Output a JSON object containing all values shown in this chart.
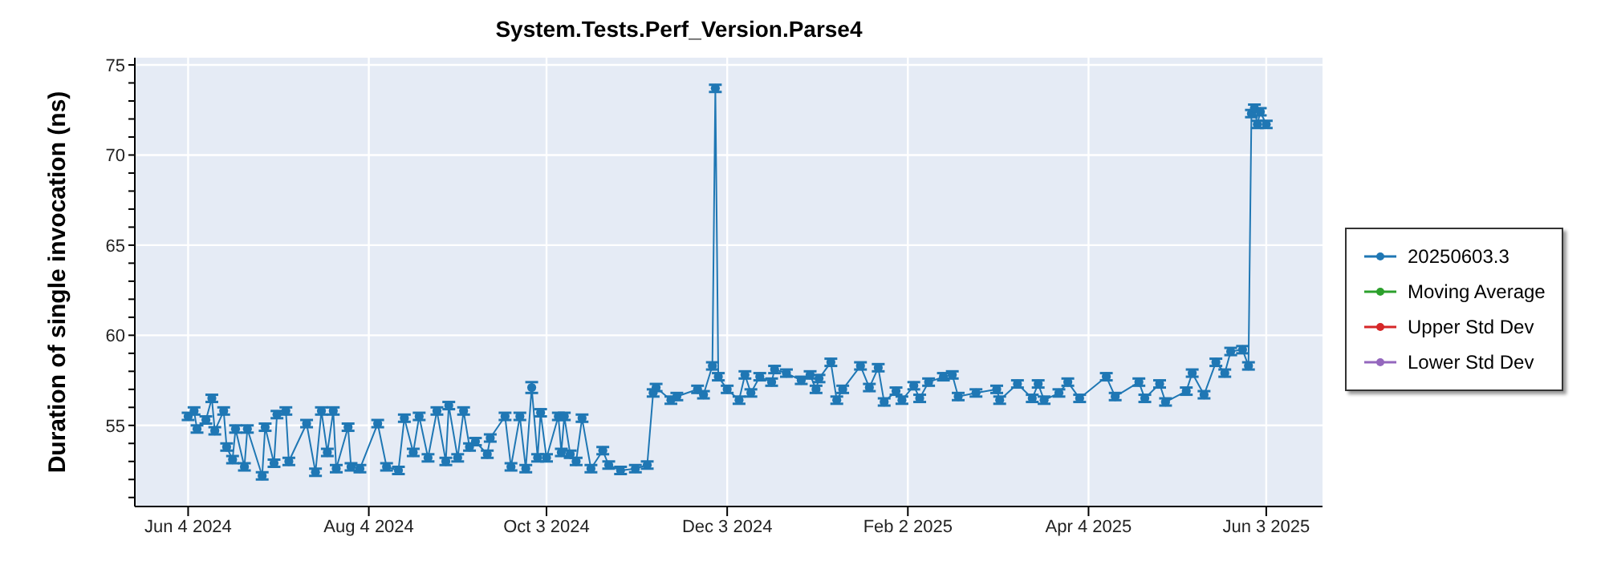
{
  "chart_data": {
    "type": "line",
    "title": "System.Tests.Perf_Version.Parse4",
    "ylabel": "Duration of single invocation (ns)",
    "x": [
      "2024-06-04",
      "2024-06-06",
      "2024-06-07",
      "2024-06-10",
      "2024-06-12",
      "2024-06-13",
      "2024-06-16",
      "2024-06-17",
      "2024-06-19",
      "2024-06-20",
      "2024-06-23",
      "2024-06-24",
      "2024-06-29",
      "2024-06-30",
      "2024-07-03",
      "2024-07-04",
      "2024-07-07",
      "2024-07-08",
      "2024-07-14",
      "2024-07-17",
      "2024-07-19",
      "2024-07-21",
      "2024-07-23",
      "2024-07-24",
      "2024-07-28",
      "2024-07-29",
      "2024-08-01",
      "2024-08-07",
      "2024-08-10",
      "2024-08-14",
      "2024-08-16",
      "2024-08-19",
      "2024-08-21",
      "2024-08-24",
      "2024-08-27",
      "2024-08-30",
      "2024-08-31",
      "2024-09-03",
      "2024-09-05",
      "2024-09-07",
      "2024-09-09",
      "2024-09-13",
      "2024-09-14",
      "2024-09-19",
      "2024-09-21",
      "2024-09-24",
      "2024-09-26",
      "2024-09-28",
      "2024-09-30",
      "2024-10-01",
      "2024-10-03",
      "2024-10-07",
      "2024-10-08",
      "2024-10-09",
      "2024-10-11",
      "2024-10-13",
      "2024-10-15",
      "2024-10-18",
      "2024-10-22",
      "2024-10-24",
      "2024-10-28",
      "2024-11-02",
      "2024-11-06",
      "2024-11-08",
      "2024-11-09",
      "2024-11-14",
      "2024-11-16",
      "2024-11-23",
      "2024-11-25",
      "2024-11-28",
      "2024-11-29",
      "2024-11-30",
      "2024-12-03",
      "2024-12-07",
      "2024-12-09",
      "2024-12-11",
      "2024-12-14",
      "2024-12-18",
      "2024-12-19",
      "2024-12-23",
      "2024-12-28",
      "2024-12-31",
      "2025-01-02",
      "2025-01-03",
      "2025-01-07",
      "2025-01-09",
      "2025-01-11",
      "2025-01-17",
      "2025-01-20",
      "2025-01-23",
      "2025-01-25",
      "2025-01-29",
      "2025-01-31",
      "2025-02-04",
      "2025-02-06",
      "2025-02-09",
      "2025-02-14",
      "2025-02-17",
      "2025-02-19",
      "2025-02-25",
      "2025-03-04",
      "2025-03-05",
      "2025-03-11",
      "2025-03-16",
      "2025-03-18",
      "2025-03-20",
      "2025-03-25",
      "2025-03-28",
      "2025-04-01",
      "2025-04-10",
      "2025-04-13",
      "2025-04-21",
      "2025-04-23",
      "2025-04-28",
      "2025-04-30",
      "2025-05-07",
      "2025-05-09",
      "2025-05-13",
      "2025-05-17",
      "2025-05-20",
      "2025-05-22",
      "2025-05-26",
      "2025-05-28",
      "2025-05-29",
      "2025-05-30",
      "2025-05-31",
      "2025-06-01",
      "2025-06-03"
    ],
    "series": [
      {
        "name": "20250603.3",
        "color": "#1f77b4",
        "values": [
          55.5,
          55.8,
          54.8,
          55.3,
          56.5,
          54.7,
          55.8,
          53.8,
          53.1,
          54.8,
          52.7,
          54.8,
          52.2,
          54.9,
          52.9,
          55.6,
          55.8,
          53.0,
          55.1,
          52.4,
          55.8,
          53.5,
          55.8,
          52.6,
          54.9,
          52.7,
          52.6,
          55.1,
          52.7,
          52.5,
          55.4,
          53.5,
          55.5,
          53.2,
          55.8,
          53.0,
          56.1,
          53.2,
          55.8,
          53.8,
          54.1,
          53.4,
          54.3,
          55.5,
          52.7,
          55.5,
          52.6,
          57.1,
          53.2,
          55.7,
          53.2,
          55.5,
          53.5,
          55.5,
          53.4,
          53.0,
          55.4,
          52.6,
          53.6,
          52.8,
          52.5,
          52.6,
          52.8,
          56.8,
          57.1,
          56.4,
          56.6,
          57.0,
          56.7,
          58.3,
          73.7,
          57.7,
          57.0,
          56.4,
          57.8,
          56.8,
          57.7,
          57.4,
          58.1,
          57.9,
          57.5,
          57.8,
          57.0,
          57.6,
          58.5,
          56.4,
          57.0,
          58.3,
          57.1,
          58.2,
          56.3,
          56.9,
          56.4,
          57.2,
          56.5,
          57.4,
          57.7,
          57.8,
          56.6,
          56.8,
          57.0,
          56.4,
          57.3,
          56.5,
          57.3,
          56.4,
          56.8,
          57.4,
          56.5,
          57.7,
          56.6,
          57.4,
          56.5,
          57.3,
          56.3,
          56.9,
          57.9,
          56.7,
          58.5,
          57.9,
          59.1,
          59.2,
          58.3,
          72.3,
          72.6,
          71.7,
          72.4,
          71.7
        ],
        "errors": [
          0.2,
          0.2,
          0.2,
          0.2,
          0.2,
          0.2,
          0.2,
          0.2,
          0.2,
          0.2,
          0.2,
          0.2,
          0.2,
          0.2,
          0.2,
          0.2,
          0.2,
          0.2,
          0.2,
          0.2,
          0.2,
          0.2,
          0.2,
          0.2,
          0.2,
          0.2,
          0.2,
          0.2,
          0.2,
          0.2,
          0.2,
          0.2,
          0.2,
          0.2,
          0.2,
          0.2,
          0.2,
          0.2,
          0.2,
          0.2,
          0.2,
          0.2,
          0.2,
          0.2,
          0.2,
          0.2,
          0.2,
          0.3,
          0.2,
          0.2,
          0.2,
          0.2,
          0.2,
          0.2,
          0.2,
          0.2,
          0.2,
          0.2,
          0.2,
          0.2,
          0.2,
          0.2,
          0.2,
          0.2,
          0.2,
          0.2,
          0.2,
          0.2,
          0.2,
          0.2,
          0.2,
          0.2,
          0.2,
          0.2,
          0.2,
          0.2,
          0.2,
          0.2,
          0.2,
          0.2,
          0.2,
          0.2,
          0.2,
          0.2,
          0.2,
          0.2,
          0.2,
          0.2,
          0.2,
          0.2,
          0.2,
          0.2,
          0.2,
          0.2,
          0.2,
          0.2,
          0.2,
          0.2,
          0.2,
          0.2,
          0.2,
          0.2,
          0.2,
          0.2,
          0.2,
          0.2,
          0.2,
          0.2,
          0.2,
          0.2,
          0.2,
          0.2,
          0.2,
          0.2,
          0.2,
          0.2,
          0.2,
          0.2,
          0.2,
          0.2,
          0.2,
          0.2,
          0.2,
          0.2,
          0.2,
          0.2,
          0.2,
          0.2
        ]
      },
      {
        "name": "Moving Average",
        "color": "#2ca02c",
        "values": [
          null,
          null,
          null,
          null,
          null,
          null,
          null,
          null,
          null,
          null,
          null,
          null,
          null,
          null,
          null,
          null,
          null,
          null,
          null,
          null,
          null,
          null,
          null,
          null,
          null,
          null,
          null,
          null,
          null,
          null,
          null,
          null,
          null,
          null,
          null,
          null,
          null,
          null,
          null,
          null,
          null,
          null,
          null,
          null,
          null,
          null,
          null,
          null,
          null,
          null,
          null,
          null,
          null,
          null,
          null,
          null,
          null,
          null,
          null,
          null,
          null,
          null,
          null,
          null,
          null,
          null,
          null,
          null,
          null,
          null,
          null,
          null,
          null,
          null,
          null,
          null,
          null,
          null,
          null,
          null,
          null,
          null,
          null,
          null,
          null,
          null,
          null,
          null,
          null,
          null,
          null,
          null,
          null,
          null,
          null,
          null,
          null,
          null,
          null,
          null,
          null,
          null,
          null,
          null,
          null,
          null,
          null,
          null,
          null,
          null,
          null,
          null,
          null,
          null,
          null,
          null,
          null,
          null,
          null,
          null,
          null,
          null,
          null,
          null,
          null,
          null,
          null,
          null
        ]
      },
      {
        "name": "Upper Std Dev",
        "color": "#d62728",
        "values": [
          null,
          null,
          null,
          null,
          null,
          null,
          null,
          null,
          null,
          null,
          null,
          null,
          null,
          null,
          null,
          null,
          null,
          null,
          null,
          null,
          null,
          null,
          null,
          null,
          null,
          null,
          null,
          null,
          null,
          null,
          null,
          null,
          null,
          null,
          null,
          null,
          null,
          null,
          null,
          null,
          null,
          null,
          null,
          null,
          null,
          null,
          null,
          null,
          null,
          null,
          null,
          null,
          null,
          null,
          null,
          null,
          null,
          null,
          null,
          null,
          null,
          null,
          null,
          null,
          null,
          null,
          null,
          null,
          null,
          null,
          null,
          null,
          null,
          null,
          null,
          null,
          null,
          null,
          null,
          null,
          null,
          null,
          null,
          null,
          null,
          null,
          null,
          null,
          null,
          null,
          null,
          null,
          null,
          null,
          null,
          null,
          null,
          null,
          null,
          null,
          null,
          null,
          null,
          null,
          null,
          null,
          null,
          null,
          null,
          null,
          null,
          null,
          null,
          null,
          null,
          null,
          null,
          null,
          null,
          null,
          null,
          null,
          null,
          null,
          null,
          null,
          null,
          null
        ]
      },
      {
        "name": "Lower Std Dev",
        "color": "#9467bd",
        "values": [
          null,
          null,
          null,
          null,
          null,
          null,
          null,
          null,
          null,
          null,
          null,
          null,
          null,
          null,
          null,
          null,
          null,
          null,
          null,
          null,
          null,
          null,
          null,
          null,
          null,
          null,
          null,
          null,
          null,
          null,
          null,
          null,
          null,
          null,
          null,
          null,
          null,
          null,
          null,
          null,
          null,
          null,
          null,
          null,
          null,
          null,
          null,
          null,
          null,
          null,
          null,
          null,
          null,
          null,
          null,
          null,
          null,
          null,
          null,
          null,
          null,
          null,
          null,
          null,
          null,
          null,
          null,
          null,
          null,
          null,
          null,
          null,
          null,
          null,
          null,
          null,
          null,
          null,
          null,
          null,
          null,
          null,
          null,
          null,
          null,
          null,
          null,
          null,
          null,
          null,
          null,
          null,
          null,
          null,
          null,
          null,
          null,
          null,
          null,
          null,
          null,
          null,
          null,
          null,
          null,
          null,
          null,
          null,
          null,
          null,
          null,
          null,
          null,
          null,
          null,
          null,
          null,
          null,
          null,
          null,
          null,
          null,
          null,
          null,
          null,
          null,
          null,
          null
        ]
      }
    ],
    "xlim": [
      "2024-05-17",
      "2025-06-22"
    ],
    "xticks": [
      {
        "value": "2024-06-04",
        "label": "Jun 4 2024"
      },
      {
        "value": "2024-08-04",
        "label": "Aug 4 2024"
      },
      {
        "value": "2024-10-03",
        "label": "Oct 3 2024"
      },
      {
        "value": "2024-12-03",
        "label": "Dec 3 2024"
      },
      {
        "value": "2025-02-02",
        "label": "Feb 2 2025"
      },
      {
        "value": "2025-04-04",
        "label": "Apr 4 2025"
      },
      {
        "value": "2025-06-03",
        "label": "Jun 3 2025"
      }
    ],
    "ylim": [
      50.5,
      75.4
    ],
    "yticks": [
      {
        "value": 51,
        "label": null
      },
      {
        "value": 52,
        "label": null
      },
      {
        "value": 53,
        "label": null
      },
      {
        "value": 54,
        "label": null
      },
      55,
      {
        "value": 56,
        "label": null
      },
      {
        "value": 57,
        "label": null
      },
      {
        "value": 58,
        "label": null
      },
      {
        "value": 59,
        "label": null
      },
      60,
      {
        "value": 61,
        "label": null
      },
      {
        "value": 62,
        "label": null
      },
      {
        "value": 63,
        "label": null
      },
      {
        "value": 64,
        "label": null
      },
      65,
      {
        "value": 66,
        "label": null
      },
      {
        "value": 67,
        "label": null
      },
      {
        "value": 68,
        "label": null
      },
      {
        "value": 69,
        "label": null
      },
      70,
      {
        "value": 71,
        "label": null
      },
      {
        "value": 72,
        "label": null
      },
      {
        "value": 73,
        "label": null
      },
      {
        "value": 74,
        "label": null
      },
      75
    ],
    "grid": true,
    "legend": "right",
    "marker": "circle",
    "line_style": "solid"
  }
}
